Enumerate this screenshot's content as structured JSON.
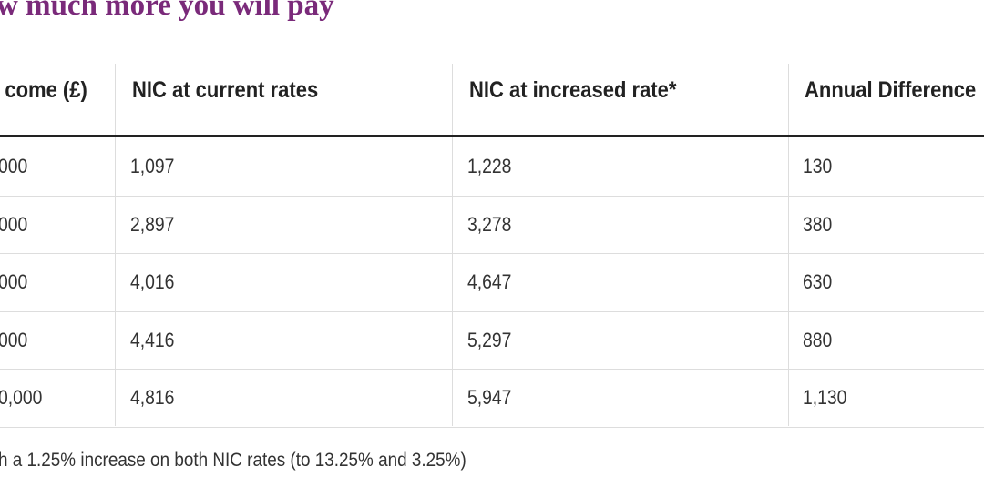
{
  "header": {
    "title": "w much more you will pay"
  },
  "table": {
    "columns": [
      "come (£)",
      "NIC at current rates",
      "NIC at increased rate*",
      "Annual Difference"
    ],
    "rows": [
      [
        "000",
        "1,097",
        "1,228",
        "130"
      ],
      [
        "000",
        "2,897",
        "3,278",
        "380"
      ],
      [
        "000",
        "4,016",
        "4,647",
        "630"
      ],
      [
        "000",
        "4,416",
        "5,297",
        "880"
      ],
      [
        "0,000",
        "4,816",
        "5,947",
        "1,130"
      ]
    ]
  },
  "footnote": "h a 1.25% increase on both NIC rates (to 13.25% and 3.25%)"
}
